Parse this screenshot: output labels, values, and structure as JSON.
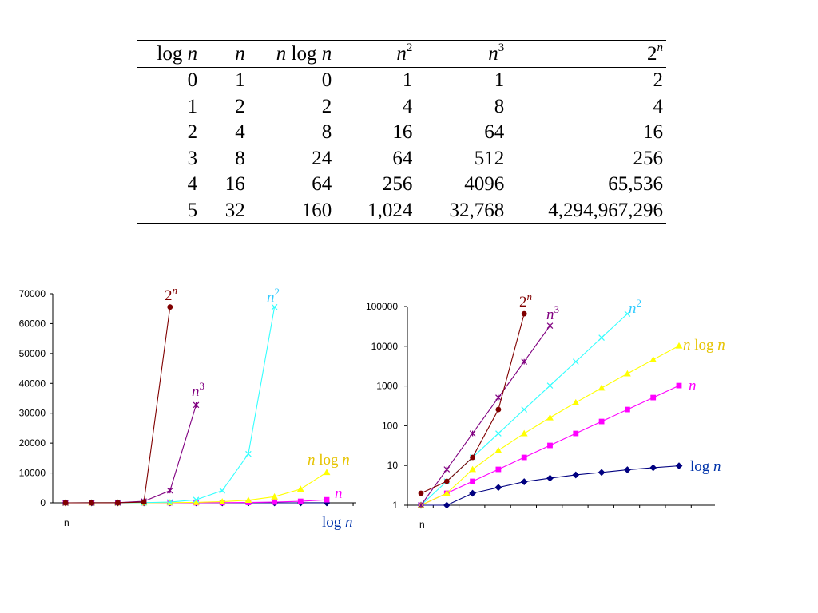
{
  "table": {
    "headers": [
      {
        "pre": "log ",
        "var": "n",
        "post": "",
        "sup": ""
      },
      {
        "pre": "",
        "var": "n",
        "post": "",
        "sup": ""
      },
      {
        "pre": "",
        "var": "n",
        "post": " log ",
        "var2": "n",
        "sup": ""
      },
      {
        "pre": "",
        "var": "n",
        "post": "",
        "sup": "2"
      },
      {
        "pre": "",
        "var": "n",
        "post": "",
        "sup": "3"
      },
      {
        "pre": "2",
        "var": "",
        "post": "",
        "sup": "n"
      }
    ],
    "rows": [
      [
        "0",
        "1",
        "0",
        "1",
        "1",
        "2"
      ],
      [
        "1",
        "2",
        "2",
        "4",
        "8",
        "4"
      ],
      [
        "2",
        "4",
        "8",
        "16",
        "64",
        "16"
      ],
      [
        "3",
        "8",
        "24",
        "64",
        "512",
        "256"
      ],
      [
        "4",
        "16",
        "64",
        "256",
        "4096",
        "65,536"
      ],
      [
        "5",
        "32",
        "160",
        "1,024",
        "32,768",
        "4,294,967,296"
      ]
    ]
  },
  "chart_data": [
    {
      "type": "line",
      "scale": "linear",
      "xlabel": "n",
      "ylim": [
        0,
        70000
      ],
      "yticks": [
        "0",
        "10000",
        "20000",
        "30000",
        "40000",
        "50000",
        "60000",
        "70000"
      ],
      "x": [
        1,
        2,
        3,
        4,
        5,
        6,
        7,
        8,
        9,
        10,
        11
      ],
      "series": [
        {
          "key": "log_n",
          "name": "log n",
          "color": "#000080",
          "marker": "diamond",
          "values": [
            0,
            1,
            1.58,
            2,
            2.32,
            2.58,
            2.81,
            3,
            3.17,
            3.32,
            3.46
          ]
        },
        {
          "key": "n",
          "name": "n",
          "color": "#ff00ff",
          "marker": "square",
          "values": [
            1,
            2,
            4,
            8,
            16,
            32,
            64,
            128,
            256,
            512,
            1024
          ]
        },
        {
          "key": "nlogn",
          "name": "n log n",
          "color": "#ffff00",
          "marker": "triangle",
          "values": [
            1,
            2,
            8,
            24,
            64,
            160,
            384,
            896,
            2048,
            4608,
            10240
          ]
        },
        {
          "key": "n2",
          "name": "n2",
          "color": "#33ffff",
          "marker": "x",
          "values": [
            1,
            4,
            16,
            64,
            256,
            1024,
            4096,
            16384,
            65536,
            null,
            null
          ]
        },
        {
          "key": "n3",
          "name": "n3",
          "color": "#800080",
          "marker": "star",
          "values": [
            1,
            8,
            64,
            512,
            4096,
            32768,
            null,
            null,
            null,
            null,
            null
          ]
        },
        {
          "key": "2n",
          "name": "2n",
          "color": "#800000",
          "marker": "circle",
          "values": [
            2,
            4,
            16,
            256,
            65536,
            null,
            null,
            null,
            null,
            null,
            null
          ]
        }
      ]
    },
    {
      "type": "line",
      "scale": "log",
      "xlabel": "n",
      "ylim": [
        1,
        100000
      ],
      "yticks": [
        "1",
        "10",
        "100",
        "1000",
        "10000",
        "100000"
      ],
      "x": [
        1,
        2,
        3,
        4,
        5,
        6,
        7,
        8,
        9,
        10,
        11
      ],
      "series": [
        {
          "key": "log_n",
          "name": "log n",
          "color": "#000080",
          "marker": "diamond",
          "values": [
            1,
            1,
            2,
            2.8,
            3.9,
            4.8,
            5.8,
            6.7,
            7.8,
            8.8,
            9.8
          ]
        },
        {
          "key": "n",
          "name": "n",
          "color": "#ff00ff",
          "marker": "square",
          "values": [
            1,
            2,
            4,
            8,
            16,
            32,
            64,
            128,
            256,
            512,
            1024
          ]
        },
        {
          "key": "nlogn",
          "name": "n log n",
          "color": "#ffff00",
          "marker": "triangle",
          "values": [
            1,
            2,
            8,
            24,
            64,
            160,
            384,
            896,
            2048,
            4608,
            10240
          ]
        },
        {
          "key": "n2",
          "name": "n2",
          "color": "#33ffff",
          "marker": "x",
          "values": [
            1,
            4,
            16,
            64,
            256,
            1024,
            4096,
            16384,
            65536,
            null,
            null
          ]
        },
        {
          "key": "n3",
          "name": "n3",
          "color": "#800080",
          "marker": "star",
          "values": [
            1,
            8,
            64,
            512,
            4096,
            32768,
            null,
            null,
            null,
            null,
            null
          ]
        },
        {
          "key": "2n",
          "name": "2n",
          "color": "#800000",
          "marker": "circle",
          "values": [
            2,
            4,
            16,
            256,
            65536,
            null,
            null,
            null,
            null,
            null,
            null
          ]
        }
      ]
    }
  ],
  "chart_labels": {
    "left": [
      {
        "key": "2n",
        "base": "2",
        "sup": "n",
        "color": "#800000"
      },
      {
        "key": "n2",
        "it": "n",
        "sup": "2",
        "color": "#33ccff"
      },
      {
        "key": "n3",
        "it": "n",
        "sup": "3",
        "color": "#800080"
      },
      {
        "key": "nlogn",
        "it": "n",
        "mid": " log ",
        "it2": "n",
        "color": "#e6c300"
      },
      {
        "key": "n",
        "it": "n",
        "color": "#ff00ff"
      },
      {
        "key": "log_n",
        "mid": "log ",
        "it2": "n",
        "color": "#0033aa"
      }
    ],
    "right": [
      {
        "key": "2n",
        "base": "2",
        "sup": "n",
        "color": "#800000"
      },
      {
        "key": "n3",
        "it": "n",
        "sup": "3",
        "color": "#800080"
      },
      {
        "key": "n2",
        "it": "n",
        "sup": "2",
        "color": "#33ccff"
      },
      {
        "key": "nlogn",
        "it": "n",
        "mid": " log ",
        "it2": "n",
        "color": "#e6c300"
      },
      {
        "key": "n",
        "it": "n",
        "color": "#ff00ff"
      },
      {
        "key": "log_n",
        "mid": "log ",
        "it2": "n",
        "color": "#0033aa"
      }
    ]
  }
}
